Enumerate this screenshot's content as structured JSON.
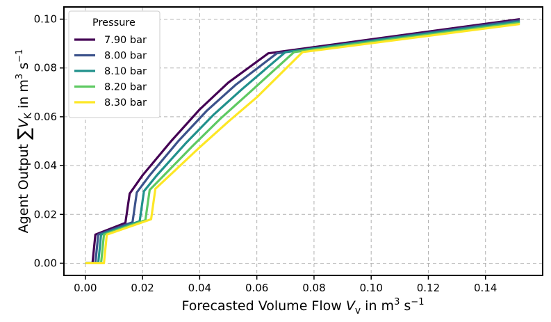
{
  "chart_data": {
    "type": "line",
    "title": "",
    "xlabel_prefix": "Forecasted Volume Flow ",
    "xlabel_symbol": "V",
    "xlabel_sub": "v",
    "xlabel_unit": " in m",
    "xlabel_exp1": "3",
    "xlabel_s": " s",
    "xlabel_exp2": "−1",
    "ylabel_prefix": "Agent Output ",
    "ylabel_sum": "∑",
    "ylabel_symbol": "V",
    "ylabel_sub": "K",
    "ylabel_unit": " in m",
    "ylabel_exp1": "3",
    "ylabel_s": " s",
    "ylabel_exp2": "−1",
    "xlim": [
      -0.0075,
      0.16
    ],
    "ylim": [
      -0.005,
      0.105
    ],
    "xticks": [
      0.0,
      0.02,
      0.04,
      0.06,
      0.08,
      0.1,
      0.12,
      0.14
    ],
    "xtick_labels": [
      "0.00",
      "0.02",
      "0.04",
      "0.06",
      "0.08",
      "0.10",
      "0.12",
      "0.14"
    ],
    "yticks": [
      0.0,
      0.02,
      0.04,
      0.06,
      0.08,
      0.1
    ],
    "ytick_labels": [
      "0.00",
      "0.02",
      "0.04",
      "0.06",
      "0.08",
      "0.10"
    ],
    "grid": true,
    "legend": {
      "title": "Pressure",
      "location": "upper-left"
    },
    "series": [
      {
        "name": "7.90 bar",
        "color": "#440154",
        "x": [
          0.0,
          0.0025,
          0.0035,
          0.014,
          0.0155,
          0.02,
          0.03,
          0.04,
          0.05,
          0.064,
          0.152
        ],
        "y": [
          0.0,
          0.0,
          0.0117,
          0.0165,
          0.0285,
          0.036,
          0.05,
          0.063,
          0.074,
          0.086,
          0.1
        ]
      },
      {
        "name": "8.00 bar",
        "color": "#3b528b",
        "x": [
          0.0,
          0.0035,
          0.0045,
          0.0165,
          0.018,
          0.0225,
          0.0325,
          0.0425,
          0.0525,
          0.067,
          0.152
        ],
        "y": [
          0.0,
          0.0,
          0.0117,
          0.0168,
          0.029,
          0.036,
          0.05,
          0.0625,
          0.073,
          0.086,
          0.0995
        ]
      },
      {
        "name": "8.10 bar",
        "color": "#21918c",
        "x": [
          0.0,
          0.0045,
          0.0055,
          0.019,
          0.0205,
          0.025,
          0.035,
          0.045,
          0.055,
          0.07,
          0.152
        ],
        "y": [
          0.0,
          0.0,
          0.0117,
          0.0172,
          0.0295,
          0.036,
          0.049,
          0.061,
          0.0715,
          0.0865,
          0.099
        ]
      },
      {
        "name": "8.20 bar",
        "color": "#5ec962",
        "x": [
          0.0,
          0.0055,
          0.0065,
          0.021,
          0.0225,
          0.0275,
          0.0375,
          0.0475,
          0.0575,
          0.073,
          0.152
        ],
        "y": [
          0.0,
          0.0,
          0.0117,
          0.0176,
          0.03,
          0.036,
          0.048,
          0.0595,
          0.07,
          0.0865,
          0.0985
        ]
      },
      {
        "name": "8.30 bar",
        "color": "#fde725",
        "x": [
          0.0,
          0.0065,
          0.0075,
          0.023,
          0.0245,
          0.03,
          0.04,
          0.05,
          0.06,
          0.076,
          0.152
        ],
        "y": [
          0.0,
          0.0,
          0.0117,
          0.018,
          0.0305,
          0.0365,
          0.0475,
          0.058,
          0.068,
          0.0865,
          0.098
        ]
      }
    ]
  }
}
